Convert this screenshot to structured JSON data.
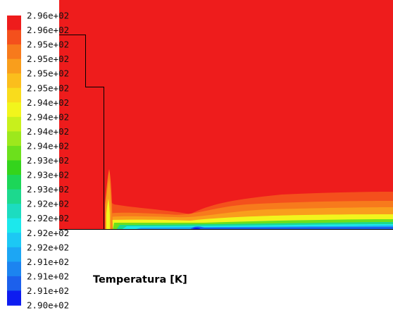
{
  "chart_data": {
    "type": "heatmap",
    "quantity_label": "Temperatura [K]",
    "colorbar": {
      "tick_labels": [
        "2.96e+02",
        "2.96e+02",
        "2.95e+02",
        "2.95e+02",
        "2.95e+02",
        "2.95e+02",
        "2.94e+02",
        "2.94e+02",
        "2.94e+02",
        "2.94e+02",
        "2.93e+02",
        "2.93e+02",
        "2.93e+02",
        "2.92e+02",
        "2.92e+02",
        "2.92e+02",
        "2.92e+02",
        "2.91e+02",
        "2.91e+02",
        "2.91e+02",
        "2.90e+02"
      ],
      "colors": [
        "#ee1c1c",
        "#f4501c",
        "#f77a1c",
        "#f99e1c",
        "#fbbe1c",
        "#f9dc1c",
        "#f2f51c",
        "#c8f01c",
        "#9de81c",
        "#6ce01c",
        "#34d41c",
        "#1cd658",
        "#1cd98e",
        "#1cdcc0",
        "#1ce8ec",
        "#1cc8f4",
        "#1ca6f4",
        "#1c84f0",
        "#1c60ec",
        "#0d1cf0"
      ],
      "min": 290,
      "max": 296
    },
    "field_colors": {
      "background": "#ee1c1c",
      "boundary": "#000000"
    }
  }
}
